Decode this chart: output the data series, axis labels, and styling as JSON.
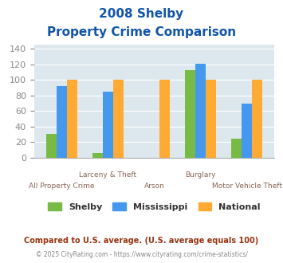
{
  "title_line1": "2008 Shelby",
  "title_line2": "Property Crime Comparison",
  "categories": [
    "All Property Crime",
    "Larceny & Theft",
    "Arson",
    "Burglary",
    "Motor Vehicle Theft"
  ],
  "shelby": [
    31,
    6,
    0,
    112,
    25
  ],
  "mississippi": [
    92,
    85,
    0,
    121,
    69
  ],
  "national": [
    100,
    100,
    100,
    100,
    100
  ],
  "shelby_color": "#77bb44",
  "mississippi_color": "#4499ee",
  "national_color": "#ffaa33",
  "bg_plot": "#dde8ee",
  "bg_fig": "#ffffff",
  "ylim": [
    0,
    145
  ],
  "yticks": [
    0,
    20,
    40,
    60,
    80,
    100,
    120,
    140
  ],
  "legend_labels": [
    "Shelby",
    "Mississippi",
    "National"
  ],
  "footnote1": "Compared to U.S. average. (U.S. average equals 100)",
  "footnote2": "© 2025 CityRating.com - https://www.cityrating.com/crime-statistics/",
  "title_color": "#1155aa",
  "footnote1_color": "#993311",
  "footnote2_color": "#888888",
  "axis_label_color": "#886655",
  "tick_color": "#888888"
}
